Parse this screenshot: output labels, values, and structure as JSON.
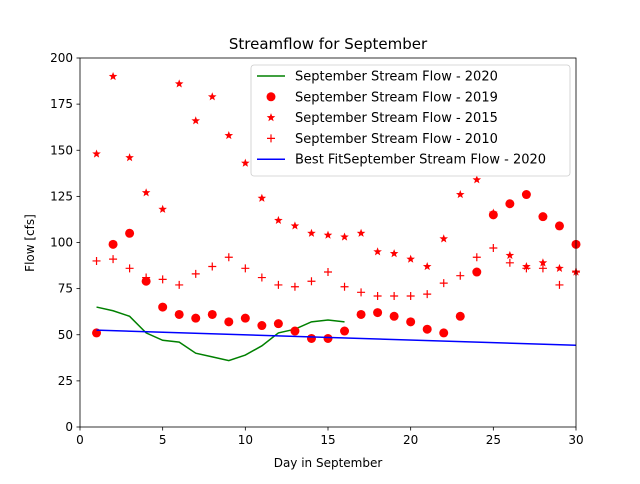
{
  "chart_data": {
    "type": "line",
    "title": "Streamflow for September",
    "xlabel": "Day in September",
    "ylabel": "Flow [cfs]",
    "xlim": [
      0,
      30
    ],
    "ylim": [
      0,
      200
    ],
    "xticks": [
      0,
      5,
      10,
      15,
      20,
      25,
      30
    ],
    "yticks": [
      0,
      25,
      50,
      75,
      100,
      125,
      150,
      175,
      200
    ],
    "grid": false,
    "legend_position": "top-right",
    "series": [
      {
        "name": "September Stream Flow - 2020",
        "style": "line",
        "color": "#008000",
        "x": [
          1,
          2,
          3,
          4,
          5,
          6,
          7,
          8,
          9,
          10,
          11,
          12,
          13,
          14,
          15,
          16
        ],
        "y": [
          65,
          63,
          60,
          51,
          47,
          46,
          40,
          38,
          36,
          39,
          44,
          51,
          53,
          57,
          58,
          57
        ]
      },
      {
        "name": "September Stream Flow - 2019",
        "style": "circle",
        "color": "#ff0000",
        "x": [
          1,
          2,
          3,
          4,
          5,
          6,
          7,
          8,
          9,
          10,
          11,
          12,
          13,
          14,
          15,
          16,
          17,
          18,
          19,
          20,
          21,
          22,
          23,
          24,
          25,
          26,
          27,
          28,
          29,
          30
        ],
        "y": [
          51,
          99,
          105,
          79,
          65,
          61,
          59,
          61,
          57,
          59,
          55,
          56,
          52,
          48,
          48,
          52,
          61,
          62,
          60,
          57,
          53,
          51,
          60,
          84,
          115,
          121,
          126,
          114,
          109,
          99
        ]
      },
      {
        "name": "September Stream Flow - 2015",
        "style": "star",
        "color": "#ff0000",
        "x": [
          1,
          2,
          3,
          4,
          5,
          6,
          7,
          8,
          9,
          10,
          11,
          12,
          13,
          14,
          15,
          16,
          17,
          18,
          19,
          20,
          21,
          22,
          23,
          24,
          25,
          26,
          27,
          28,
          29,
          30
        ],
        "y": [
          148,
          190,
          146,
          127,
          118,
          186,
          166,
          179,
          158,
          143,
          124,
          112,
          109,
          105,
          104,
          103,
          105,
          95,
          94,
          91,
          87,
          102,
          126,
          134,
          116,
          93,
          87,
          89,
          86,
          84
        ]
      },
      {
        "name": "September Stream Flow - 2010",
        "style": "plus",
        "color": "#ff0000",
        "x": [
          1,
          2,
          3,
          4,
          5,
          6,
          7,
          8,
          9,
          10,
          11,
          12,
          13,
          14,
          15,
          16,
          17,
          18,
          19,
          20,
          21,
          22,
          23,
          24,
          25,
          26,
          27,
          28,
          29,
          30
        ],
        "y": [
          90,
          91,
          86,
          81,
          80,
          77,
          83,
          87,
          92,
          86,
          81,
          77,
          76,
          79,
          84,
          76,
          73,
          71,
          71,
          71,
          72,
          78,
          82,
          92,
          97,
          89,
          86,
          86,
          77,
          84
        ]
      },
      {
        "name": "Best FitSeptember Stream Flow - 2020",
        "style": "line",
        "color": "#0000ff",
        "x": [
          1,
          30
        ],
        "y": [
          52.5,
          44.3
        ]
      }
    ]
  }
}
